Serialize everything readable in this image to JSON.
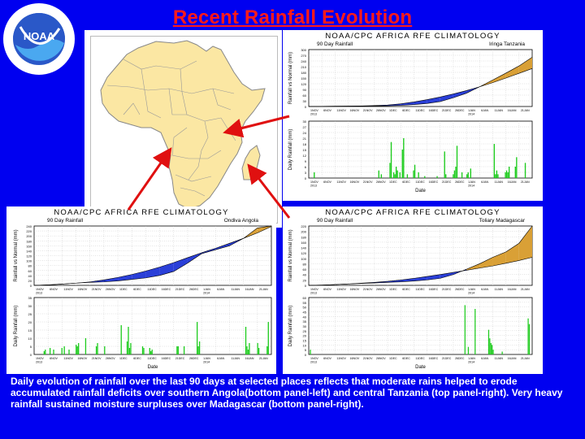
{
  "title": "Recent Rainfall Evolution",
  "logo": {
    "center_text": "NOAA",
    "ring_text": "NATIONAL OCEANIC AND ATMOSPHERIC ADMINISTRATION · U.S. DEPARTMENT OF COMMERCE"
  },
  "caption": "Daily evolution of rainfall over the last 90 days at selected places reflects that moderate rains helped to erode accumulated rainfall deficits over southern Angola(bottom panel-left) and central Tanzania (top panel-right). Very heavy rainfall sustained moisture surpluses over Madagascar (bottom panel-right).",
  "colors": {
    "background": "#0000f0",
    "title": "#ff1a1a",
    "surplus": "#d9a036",
    "deficit": "#2a3fd8",
    "bars": "#1ecc1e",
    "arrow": "#e01010"
  },
  "x_ticks": [
    "1NOV\n2013",
    "6NOV",
    "11NOV",
    "16NOV",
    "21NOV",
    "26NOV",
    "1DEC",
    "6DEC",
    "11DEC",
    "16DEC",
    "21DEC",
    "26DEC",
    "1JAN\n2014",
    "6JAN",
    "11JAN",
    "16JAN",
    "21JAN"
  ],
  "chart_data": [
    {
      "id": "tanzania",
      "type": "area",
      "header": "NOAA/CPC AFRICA RFE CLIMATOLOGY",
      "top_title": "90 Day Rainfall",
      "location": "Iringa Tanzania",
      "top_ylabel": "Rainfall vs Normal (mm)",
      "top_yticks": [
        "300",
        "270",
        "240",
        "210",
        "180",
        "150",
        "120",
        "90",
        "60",
        "30",
        "0"
      ],
      "top_ymax": 300,
      "normal": [
        0,
        0,
        1,
        2,
        3,
        5,
        8,
        14,
        24,
        36,
        50,
        66,
        84,
        104,
        126,
        150,
        175,
        200
      ],
      "actual": [
        0,
        1,
        2,
        2,
        2,
        3,
        4,
        6,
        10,
        16,
        26,
        46,
        70,
        104,
        140,
        176,
        214,
        260
      ],
      "bot_ylabel": "Daily Rainfall (mm)",
      "bot_yticks": [
        "30",
        "27",
        "24",
        "21",
        "18",
        "15",
        "12",
        "9",
        "6",
        "3",
        "0"
      ],
      "bot_ymax": 30,
      "daily": [
        0,
        0,
        0,
        0,
        3,
        0,
        0,
        0,
        0,
        0,
        0,
        0,
        0,
        0,
        0,
        0,
        0,
        0,
        0,
        0,
        0,
        0,
        0,
        0,
        0,
        0,
        0,
        0,
        0,
        0,
        0,
        0,
        0,
        0,
        0,
        0,
        0,
        0,
        0,
        0,
        0,
        0,
        0,
        0,
        0,
        0,
        0,
        0,
        0,
        0,
        0,
        0,
        0,
        0,
        0,
        0,
        4,
        0,
        2,
        0,
        0,
        0,
        0,
        0,
        0,
        8,
        19,
        0,
        3,
        2,
        6,
        4,
        0,
        3,
        0,
        15,
        21,
        0,
        0,
        2,
        0,
        0,
        0,
        0,
        4,
        7,
        0,
        0,
        3,
        0,
        0,
        0,
        0,
        1,
        0,
        0,
        0,
        0,
        0,
        0,
        0,
        0,
        0,
        1,
        0,
        0,
        0,
        0,
        0,
        14,
        2,
        0,
        0,
        0,
        0,
        0,
        2,
        4,
        6,
        17,
        0,
        0,
        0,
        3,
        0,
        0,
        0,
        2,
        3,
        0,
        5,
        0,
        0,
        0,
        0,
        0,
        0,
        0,
        0,
        0,
        0,
        0,
        0,
        0,
        0,
        0,
        0,
        0,
        0,
        18,
        2,
        4,
        2,
        0,
        0,
        0,
        0,
        0,
        3,
        4,
        3,
        6,
        0,
        0,
        0,
        0,
        6,
        11,
        0,
        0,
        0,
        0,
        0,
        0,
        8,
        0,
        0,
        0,
        0,
        0
      ],
      "xlabel": "Date"
    },
    {
      "id": "angola",
      "type": "area",
      "header": "NOAA/CPC AFRICA RFE CLIMATOLOGY",
      "top_title": "90 Day Rainfall",
      "location": "Ondiva Angola",
      "top_ylabel": "Rainfall vs Normal (mm)",
      "top_yticks": [
        "240",
        "220",
        "200",
        "180",
        "160",
        "140",
        "120",
        "100",
        "80",
        "60",
        "40",
        "20",
        "0"
      ],
      "top_ymax": 240,
      "normal": [
        0,
        2,
        5,
        9,
        14,
        22,
        32,
        44,
        58,
        74,
        92,
        112,
        132,
        150,
        170,
        190,
        212,
        238
      ],
      "actual": [
        0,
        2,
        5,
        9,
        12,
        14,
        18,
        24,
        30,
        40,
        56,
        90,
        128,
        144,
        160,
        190,
        232,
        260
      ],
      "bot_ylabel": "Daily Rainfall (mm)",
      "bot_yticks": [
        "35",
        "30",
        "25",
        "20",
        "15",
        "10",
        "5",
        "0"
      ],
      "bot_ymax": 35,
      "daily": [
        0,
        0,
        0,
        0,
        0,
        0,
        0,
        0,
        2,
        3,
        0,
        0,
        0,
        4,
        0,
        0,
        3,
        0,
        0,
        0,
        0,
        0,
        0,
        4,
        0,
        5,
        0,
        0,
        0,
        3,
        0,
        0,
        0,
        0,
        0,
        6,
        5,
        7,
        0,
        0,
        0,
        0,
        0,
        10,
        0,
        0,
        0,
        0,
        0,
        0,
        0,
        0,
        5,
        7,
        0,
        0,
        0,
        0,
        0,
        5,
        0,
        0,
        0,
        0,
        0,
        0,
        0,
        0,
        0,
        0,
        0,
        0,
        0,
        18,
        0,
        0,
        0,
        0,
        8,
        17,
        4,
        7,
        0,
        0,
        0,
        0,
        0,
        0,
        0,
        0,
        0,
        5,
        4,
        0,
        0,
        0,
        0,
        4,
        2,
        3,
        0,
        0,
        0,
        0,
        0,
        0,
        0,
        0,
        0,
        0,
        0,
        0,
        0,
        0,
        0,
        0,
        0,
        0,
        0,
        0,
        5,
        5,
        0,
        0,
        0,
        0,
        5,
        0,
        0,
        0,
        0,
        0,
        0,
        0,
        0,
        0,
        0,
        20,
        5,
        8,
        0,
        0,
        0,
        0,
        0,
        0,
        0,
        0,
        0,
        0,
        0,
        0,
        0,
        0,
        0,
        0,
        0,
        0,
        0,
        0,
        0,
        0,
        0,
        0,
        0,
        0,
        0,
        0,
        0,
        0,
        0,
        0,
        0,
        0,
        0,
        0,
        0,
        0,
        17,
        5,
        3,
        7,
        0,
        0,
        0,
        0,
        0,
        0,
        7,
        4,
        0,
        0,
        0,
        0,
        0,
        0,
        5,
        20,
        0,
        0
      ],
      "xlabel": "Date"
    },
    {
      "id": "madagascar",
      "type": "area",
      "header": "NOAA/CPC AFRICA RFE CLIMATOLOGY",
      "top_title": "90 Day Rainfall",
      "location": "Toliary Madagascar",
      "top_ylabel": "Rainfall vs Normal (mm)",
      "top_yticks": [
        "220",
        "200",
        "180",
        "160",
        "140",
        "120",
        "100",
        "80",
        "60",
        "40",
        "20",
        "0"
      ],
      "top_ymax": 220,
      "normal": [
        0,
        1,
        3,
        5,
        8,
        11,
        15,
        20,
        26,
        33,
        40,
        48,
        56,
        64,
        72,
        82,
        92,
        104
      ],
      "actual": [
        0,
        1,
        3,
        5,
        7,
        9,
        11,
        13,
        16,
        20,
        26,
        40,
        60,
        80,
        104,
        124,
        156,
        220
      ],
      "bot_ylabel": "Daily Rainfall (mm)",
      "bot_yticks": [
        "60",
        "55",
        "50",
        "45",
        "40",
        "35",
        "30",
        "25",
        "20",
        "15",
        "10",
        "5",
        "0"
      ],
      "bot_ymax": 60,
      "daily": [
        0,
        5,
        0,
        0,
        0,
        0,
        0,
        0,
        0,
        0,
        0,
        0,
        0,
        0,
        0,
        0,
        0,
        0,
        0,
        0,
        0,
        0,
        0,
        0,
        0,
        0,
        0,
        0,
        0,
        0,
        0,
        0,
        0,
        0,
        0,
        0,
        0,
        0,
        0,
        0,
        0,
        0,
        0,
        0,
        0,
        0,
        0,
        0,
        0,
        0,
        0,
        0,
        0,
        0,
        0,
        0,
        0,
        0,
        0,
        0,
        0,
        0,
        0,
        0,
        0,
        0,
        0,
        0,
        0,
        0,
        0,
        0,
        0,
        0,
        0,
        0,
        0,
        0,
        0,
        0,
        0,
        0,
        0,
        0,
        0,
        0,
        0,
        0,
        0,
        0,
        0,
        0,
        0,
        0,
        0,
        0,
        0,
        0,
        0,
        0,
        0,
        0,
        0,
        0,
        0,
        0,
        0,
        0,
        0,
        0,
        0,
        0,
        0,
        0,
        0,
        0,
        0,
        0,
        0,
        0,
        0,
        0,
        0,
        0,
        0,
        0,
        0,
        0,
        0,
        0,
        0,
        0,
        0,
        0,
        0,
        0,
        0,
        0,
        52,
        0,
        0,
        8,
        0,
        0,
        0,
        0,
        0,
        48,
        0,
        0,
        0,
        0,
        0,
        0,
        0,
        0,
        0,
        0,
        0,
        26,
        17,
        12,
        10,
        5,
        0,
        0,
        0,
        0,
        0,
        0,
        0,
        3,
        0,
        0,
        0,
        0,
        0,
        0,
        0,
        0,
        0,
        0,
        0,
        0,
        0,
        0,
        0,
        0,
        0,
        0,
        0,
        0,
        0,
        0,
        38,
        32,
        0,
        0
      ],
      "xlabel": "Date"
    }
  ]
}
